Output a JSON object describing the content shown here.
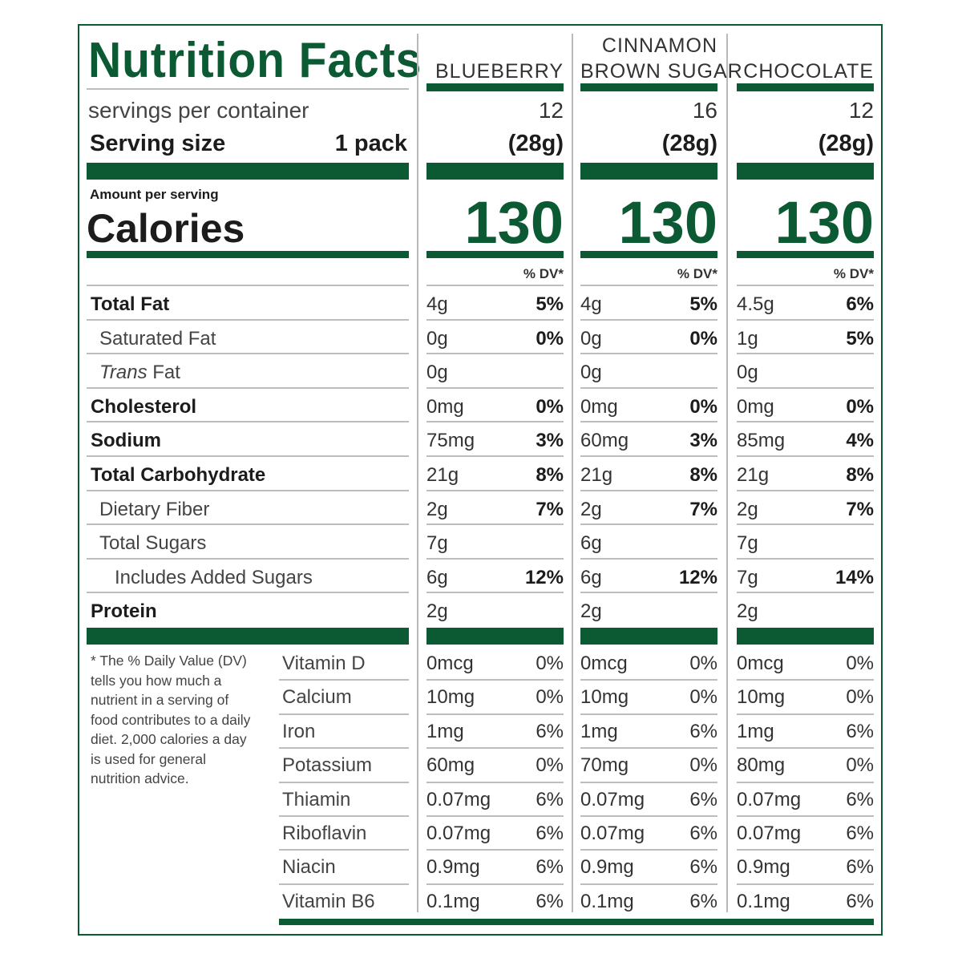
{
  "label": {
    "title": "Nutrition Facts",
    "servings_label": "servings per container",
    "serving_size_label": "Serving size",
    "serving_size_value": "1 pack",
    "amount_per_serving": "Amount per serving",
    "calories_label": "Calories",
    "dv_header": "% DV*",
    "footnote": "* The % Daily Value (DV) tells you how much a nutrient in a serving of food contributes to a daily diet. 2,000 calories a day is used for general nutrition advice."
  },
  "products": [
    {
      "name_line1": "",
      "name_line2": "BLUEBERRY",
      "servings": "12",
      "serving_weight": "(28g)",
      "calories": "130"
    },
    {
      "name_line1": "CINNAMON",
      "name_line2": "BROWN SUGAR",
      "servings": "16",
      "serving_weight": "(28g)",
      "calories": "130"
    },
    {
      "name_line1": "",
      "name_line2": "CHOCOLATE",
      "servings": "12",
      "serving_weight": "(28g)",
      "calories": "130"
    }
  ],
  "nutrients": [
    {
      "name": "Total Fat",
      "values": [
        [
          "4g",
          "5%"
        ],
        [
          "4g",
          "5%"
        ],
        [
          "4.5g",
          "6%"
        ]
      ]
    },
    {
      "name": "Saturated Fat",
      "values": [
        [
          "0g",
          "0%"
        ],
        [
          "0g",
          "0%"
        ],
        [
          "1g",
          "5%"
        ]
      ]
    },
    {
      "name": "Trans Fat",
      "values": [
        [
          "0g",
          ""
        ],
        [
          "0g",
          ""
        ],
        [
          "0g",
          ""
        ]
      ]
    },
    {
      "name": "Cholesterol",
      "values": [
        [
          "0mg",
          "0%"
        ],
        [
          "0mg",
          "0%"
        ],
        [
          "0mg",
          "0%"
        ]
      ]
    },
    {
      "name": "Sodium",
      "values": [
        [
          "75mg",
          "3%"
        ],
        [
          "60mg",
          "3%"
        ],
        [
          "85mg",
          "4%"
        ]
      ]
    },
    {
      "name": "Total Carbohydrate",
      "values": [
        [
          "21g",
          "8%"
        ],
        [
          "21g",
          "8%"
        ],
        [
          "21g",
          "8%"
        ]
      ]
    },
    {
      "name": "Dietary Fiber",
      "values": [
        [
          "2g",
          "7%"
        ],
        [
          "2g",
          "7%"
        ],
        [
          "2g",
          "7%"
        ]
      ]
    },
    {
      "name": "Total Sugars",
      "values": [
        [
          "7g",
          ""
        ],
        [
          "6g",
          ""
        ],
        [
          "7g",
          ""
        ]
      ]
    },
    {
      "name": "Includes Added Sugars",
      "values": [
        [
          "6g",
          "12%"
        ],
        [
          "6g",
          "12%"
        ],
        [
          "7g",
          "14%"
        ]
      ]
    },
    {
      "name": "Protein",
      "values": [
        [
          "2g",
          ""
        ],
        [
          "2g",
          ""
        ],
        [
          "2g",
          ""
        ]
      ]
    }
  ],
  "micronutrients": [
    {
      "name": "Vitamin D",
      "values": [
        [
          "0mcg",
          "0%"
        ],
        [
          "0mcg",
          "0%"
        ],
        [
          "0mcg",
          "0%"
        ]
      ]
    },
    {
      "name": "Calcium",
      "values": [
        [
          "10mg",
          "0%"
        ],
        [
          "10mg",
          "0%"
        ],
        [
          "10mg",
          "0%"
        ]
      ]
    },
    {
      "name": "Iron",
      "values": [
        [
          "1mg",
          "6%"
        ],
        [
          "1mg",
          "6%"
        ],
        [
          "1mg",
          "6%"
        ]
      ]
    },
    {
      "name": "Potassium",
      "values": [
        [
          "60mg",
          "0%"
        ],
        [
          "70mg",
          "0%"
        ],
        [
          "80mg",
          "0%"
        ]
      ]
    },
    {
      "name": "Thiamin",
      "values": [
        [
          "0.07mg",
          "6%"
        ],
        [
          "0.07mg",
          "6%"
        ],
        [
          "0.07mg",
          "6%"
        ]
      ]
    },
    {
      "name": "Riboflavin",
      "values": [
        [
          "0.07mg",
          "6%"
        ],
        [
          "0.07mg",
          "6%"
        ],
        [
          "0.07mg",
          "6%"
        ]
      ]
    },
    {
      "name": "Niacin",
      "values": [
        [
          "0.9mg",
          "6%"
        ],
        [
          "0.9mg",
          "6%"
        ],
        [
          "0.9mg",
          "6%"
        ]
      ]
    },
    {
      "name": "Vitamin B6",
      "values": [
        [
          "0.1mg",
          "6%"
        ],
        [
          "0.1mg",
          "6%"
        ],
        [
          "0.1mg",
          "6%"
        ]
      ]
    }
  ],
  "colors": {
    "accent": "#0b5a33",
    "rule": "#bdbdbd"
  }
}
